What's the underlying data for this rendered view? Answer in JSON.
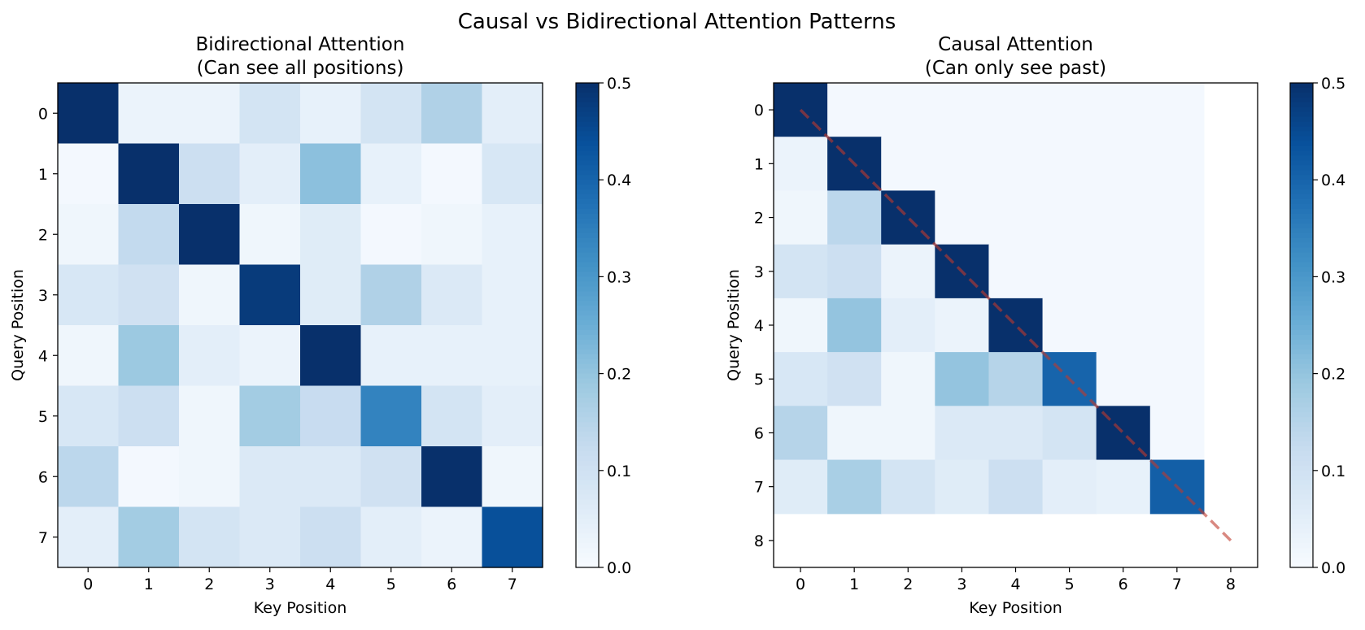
{
  "figure": {
    "suptitle": "Causal vs Bidirectional Attention Patterns"
  },
  "colormap": {
    "name": "Blues",
    "stops": [
      "#f7fbff",
      "#deebf7",
      "#c6dbef",
      "#9ecae1",
      "#6baed6",
      "#4292c6",
      "#2171b5",
      "#08519c",
      "#08306b"
    ]
  },
  "diagonal_line_color": "#c0392b",
  "chart_data": [
    {
      "type": "heatmap",
      "title": "Bidirectional Attention\n(Can see all positions)",
      "xlabel": "Key Position",
      "ylabel": "Query Position",
      "x_ticks": [
        "0",
        "1",
        "2",
        "3",
        "4",
        "5",
        "6",
        "7"
      ],
      "y_ticks": [
        "0",
        "1",
        "2",
        "3",
        "4",
        "5",
        "6",
        "7"
      ],
      "vmin": 0.0,
      "vmax": 0.5,
      "colorbar_ticks": [
        "0.0",
        "0.1",
        "0.2",
        "0.3",
        "0.4",
        "0.5"
      ],
      "values": [
        [
          0.5,
          0.03,
          0.03,
          0.09,
          0.04,
          0.09,
          0.16,
          0.05
        ],
        [
          0.01,
          0.5,
          0.11,
          0.05,
          0.21,
          0.04,
          0.01,
          0.08
        ],
        [
          0.02,
          0.13,
          0.5,
          0.02,
          0.06,
          0.01,
          0.02,
          0.04
        ],
        [
          0.08,
          0.1,
          0.02,
          0.48,
          0.06,
          0.16,
          0.07,
          0.04
        ],
        [
          0.02,
          0.19,
          0.05,
          0.03,
          0.5,
          0.04,
          0.04,
          0.04
        ],
        [
          0.08,
          0.11,
          0.02,
          0.18,
          0.12,
          0.34,
          0.09,
          0.05
        ],
        [
          0.14,
          0.01,
          0.02,
          0.07,
          0.07,
          0.1,
          0.5,
          0.02
        ],
        [
          0.05,
          0.18,
          0.09,
          0.07,
          0.11,
          0.05,
          0.03,
          0.44
        ]
      ]
    },
    {
      "type": "heatmap",
      "title": "Causal Attention\n(Can only see past)",
      "xlabel": "Key Position",
      "ylabel": "Query Position",
      "x_ticks": [
        "0",
        "1",
        "2",
        "3",
        "4",
        "5",
        "6",
        "7",
        "8"
      ],
      "y_ticks": [
        "0",
        "1",
        "2",
        "3",
        "4",
        "5",
        "6",
        "7",
        "8"
      ],
      "vmin": 0.0,
      "vmax": 0.5,
      "colorbar_ticks": [
        "0.0",
        "0.1",
        "0.2",
        "0.3",
        "0.4",
        "0.5"
      ],
      "diagonal_line": {
        "from": [
          0,
          0
        ],
        "to": [
          8,
          8
        ],
        "style": "dashed"
      },
      "values": [
        [
          0.5,
          0.01,
          0.01,
          0.01,
          0.01,
          0.01,
          0.01,
          0.01
        ],
        [
          0.03,
          0.5,
          0.01,
          0.01,
          0.01,
          0.01,
          0.01,
          0.01
        ],
        [
          0.02,
          0.14,
          0.5,
          0.01,
          0.01,
          0.01,
          0.01,
          0.01
        ],
        [
          0.09,
          0.11,
          0.03,
          0.5,
          0.01,
          0.01,
          0.01,
          0.01
        ],
        [
          0.02,
          0.2,
          0.05,
          0.03,
          0.5,
          0.01,
          0.01,
          0.01
        ],
        [
          0.08,
          0.1,
          0.02,
          0.2,
          0.15,
          0.4,
          0.01,
          0.01
        ],
        [
          0.15,
          0.02,
          0.02,
          0.07,
          0.07,
          0.09,
          0.5,
          0.01
        ],
        [
          0.06,
          0.17,
          0.09,
          0.06,
          0.11,
          0.05,
          0.04,
          0.41
        ]
      ]
    }
  ]
}
